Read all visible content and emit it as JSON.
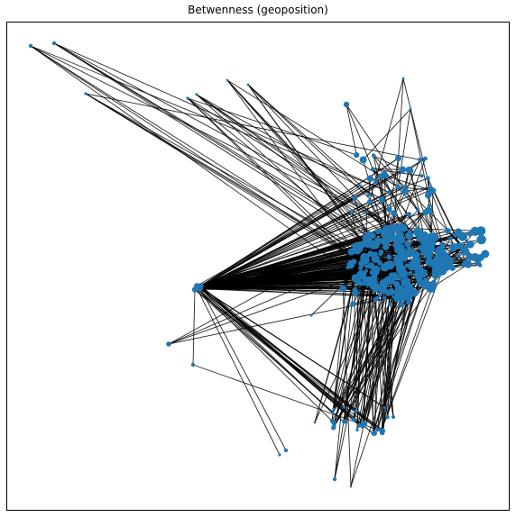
{
  "figure": {
    "title": "Betwenness (geoposition)"
  },
  "graph": {
    "node_color": "#1f77b4",
    "edge_color": "#000000",
    "description_hidden": true
  }
}
